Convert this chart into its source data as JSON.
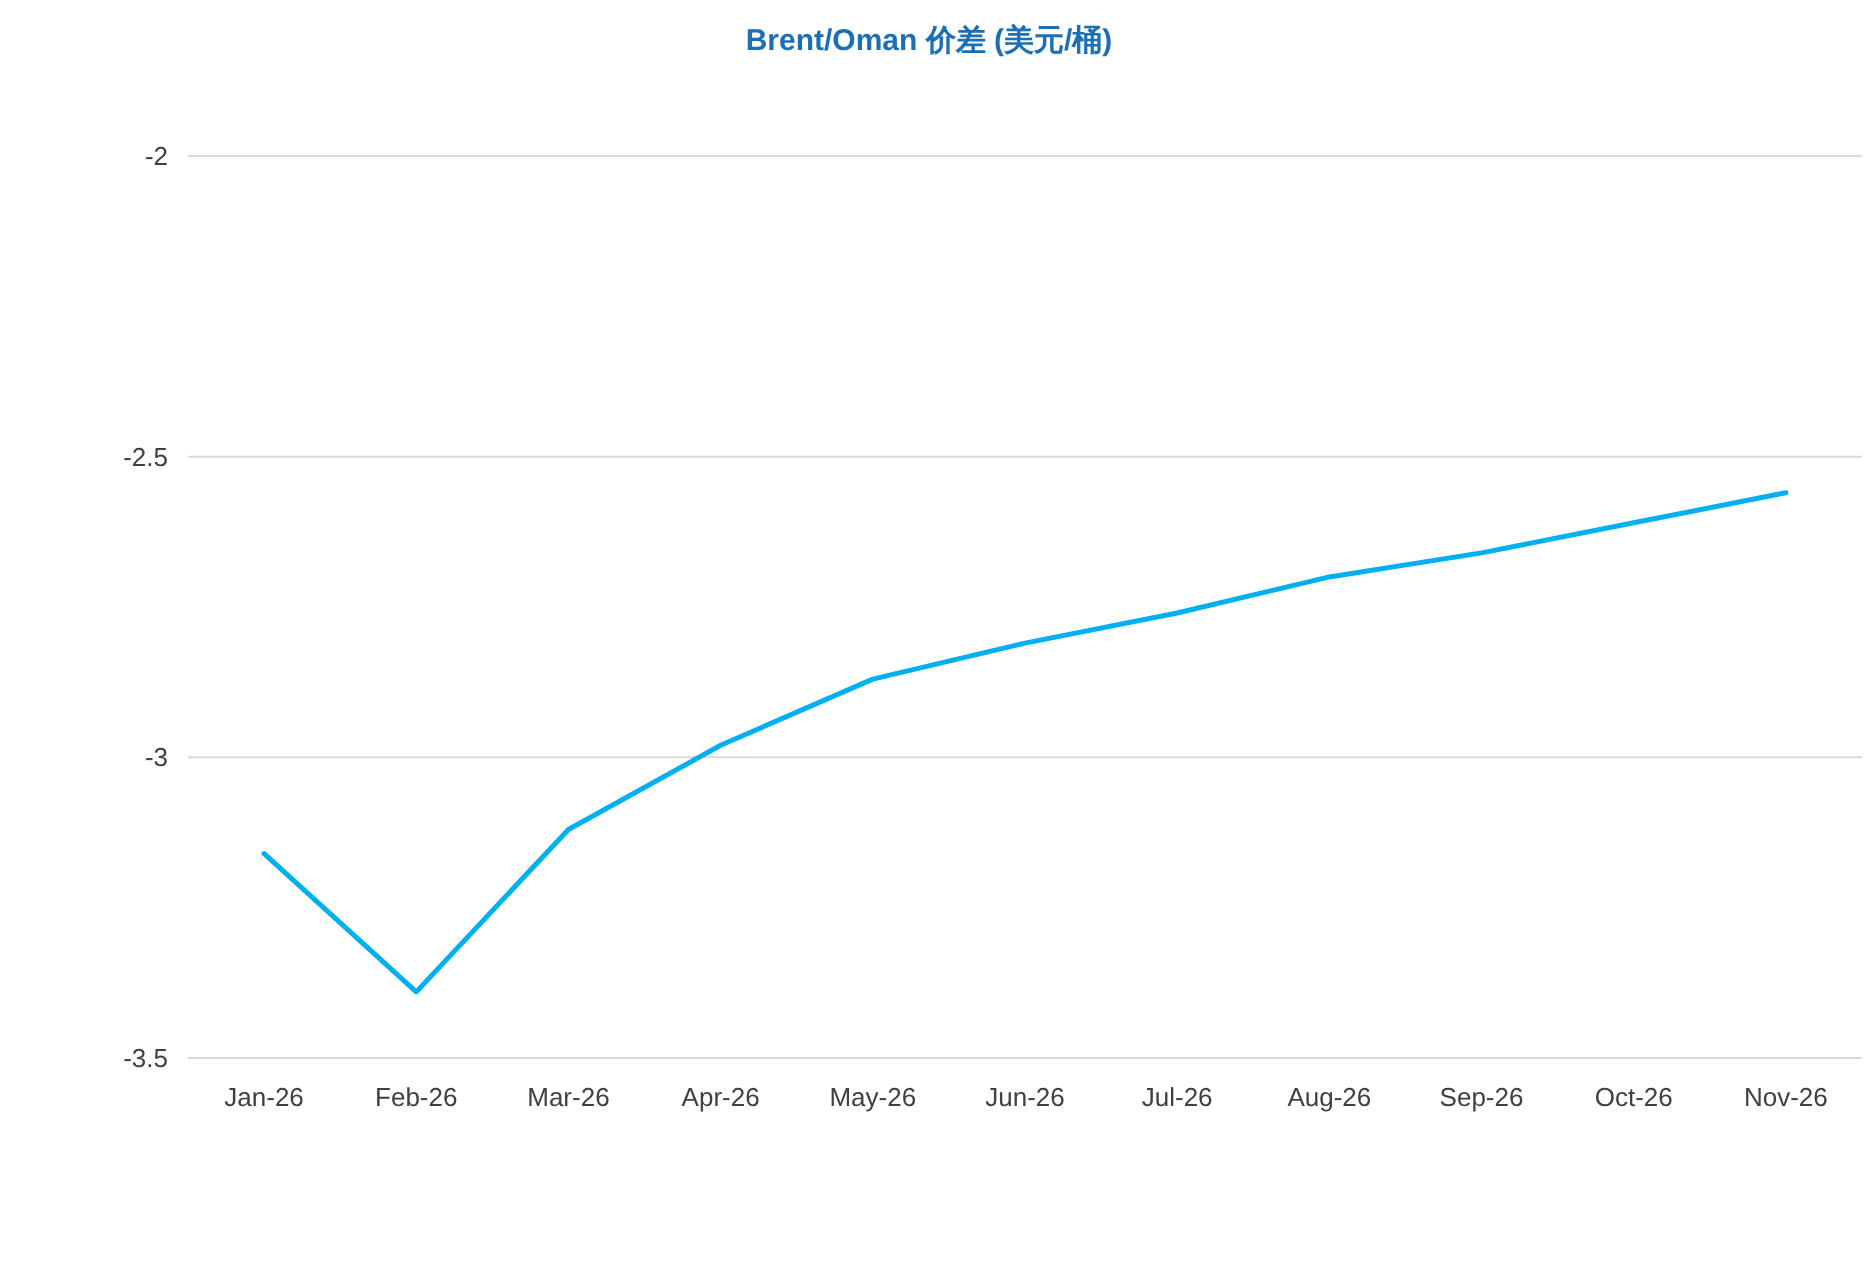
{
  "chart_data": {
    "type": "line",
    "title": "Brent/Oman 价差 (美元/桶)",
    "categories": [
      "Jan-26",
      "Feb-26",
      "Mar-26",
      "Apr-26",
      "May-26",
      "Jun-26",
      "Jul-26",
      "Aug-26",
      "Sep-26",
      "Oct-26",
      "Nov-26"
    ],
    "series": [
      {
        "color": "#00b0f0",
        "values": [
          -3.16,
          -3.39,
          -3.12,
          -2.98,
          -2.87,
          -2.81,
          -2.76,
          -2.7,
          -2.66,
          -2.61,
          -2.56
        ]
      }
    ],
    "ylim": [
      -3.5,
      -2
    ],
    "yticks": [
      -2,
      -2.5,
      -3,
      -3.5
    ],
    "grid": "y",
    "marker": "none",
    "line_style": "solid"
  }
}
